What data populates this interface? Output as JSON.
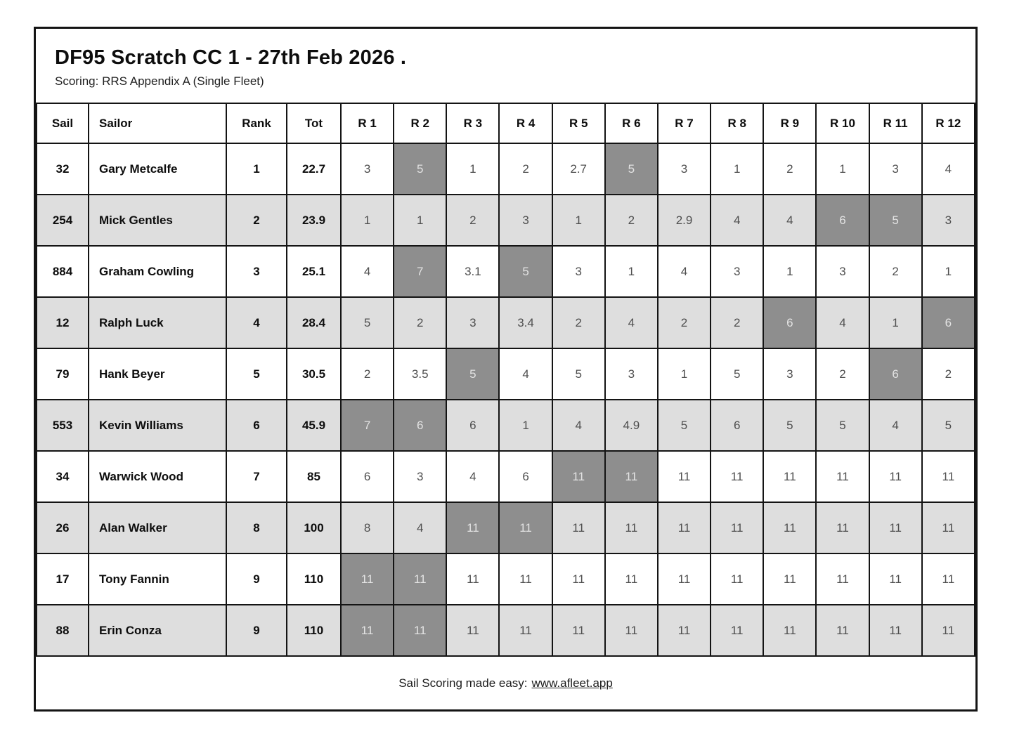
{
  "report": {
    "title": "DF95 Scratch CC 1 - 27th Feb 2026 .",
    "subtitle": "Scoring: RRS Appendix A (Single Fleet)"
  },
  "table": {
    "columns": [
      "Sail",
      "Sailor",
      "Rank",
      "Tot",
      "R 1",
      "R 2",
      "R 3",
      "R 4",
      "R 5",
      "R 6",
      "R 7",
      "R 8",
      "R 9",
      "R 10",
      "R 11",
      "R 12"
    ],
    "rows": [
      {
        "sail": "32",
        "sailor": "Gary Metcalfe",
        "rank": "1",
        "tot": "22.7",
        "races": [
          "3",
          "5",
          "1",
          "2",
          "2.7",
          "5",
          "3",
          "1",
          "2",
          "1",
          "3",
          "4"
        ],
        "discards": [
          1,
          5
        ]
      },
      {
        "sail": "254",
        "sailor": "Mick Gentles",
        "rank": "2",
        "tot": "23.9",
        "races": [
          "1",
          "1",
          "2",
          "3",
          "1",
          "2",
          "2.9",
          "4",
          "4",
          "6",
          "5",
          "3"
        ],
        "discards": [
          9,
          10
        ]
      },
      {
        "sail": "884",
        "sailor": "Graham Cowling",
        "rank": "3",
        "tot": "25.1",
        "races": [
          "4",
          "7",
          "3.1",
          "5",
          "3",
          "1",
          "4",
          "3",
          "1",
          "3",
          "2",
          "1"
        ],
        "discards": [
          1,
          3
        ]
      },
      {
        "sail": "12",
        "sailor": "Ralph Luck",
        "rank": "4",
        "tot": "28.4",
        "races": [
          "5",
          "2",
          "3",
          "3.4",
          "2",
          "4",
          "2",
          "2",
          "6",
          "4",
          "1",
          "6"
        ],
        "discards": [
          8,
          11
        ]
      },
      {
        "sail": "79",
        "sailor": "Hank Beyer",
        "rank": "5",
        "tot": "30.5",
        "races": [
          "2",
          "3.5",
          "5",
          "4",
          "5",
          "3",
          "1",
          "5",
          "3",
          "2",
          "6",
          "2"
        ],
        "discards": [
          2,
          10
        ]
      },
      {
        "sail": "553",
        "sailor": "Kevin Williams",
        "rank": "6",
        "tot": "45.9",
        "races": [
          "7",
          "6",
          "6",
          "1",
          "4",
          "4.9",
          "5",
          "6",
          "5",
          "5",
          "4",
          "5"
        ],
        "discards": [
          0,
          1
        ]
      },
      {
        "sail": "34",
        "sailor": "Warwick Wood",
        "rank": "7",
        "tot": "85",
        "races": [
          "6",
          "3",
          "4",
          "6",
          "11",
          "11",
          "11",
          "11",
          "11",
          "11",
          "11",
          "11"
        ],
        "discards": [
          4,
          5
        ]
      },
      {
        "sail": "26",
        "sailor": "Alan Walker",
        "rank": "8",
        "tot": "100",
        "races": [
          "8",
          "4",
          "11",
          "11",
          "11",
          "11",
          "11",
          "11",
          "11",
          "11",
          "11",
          "11"
        ],
        "discards": [
          2,
          3
        ]
      },
      {
        "sail": "17",
        "sailor": "Tony Fannin",
        "rank": "9",
        "tot": "110",
        "races": [
          "11",
          "11",
          "11",
          "11",
          "11",
          "11",
          "11",
          "11",
          "11",
          "11",
          "11",
          "11"
        ],
        "discards": [
          0,
          1
        ]
      },
      {
        "sail": "88",
        "sailor": "Erin Conza",
        "rank": "9",
        "tot": "110",
        "races": [
          "11",
          "11",
          "11",
          "11",
          "11",
          "11",
          "11",
          "11",
          "11",
          "11",
          "11",
          "11"
        ],
        "discards": [
          0,
          1
        ]
      }
    ]
  },
  "footer": {
    "label": "Sail Scoring made easy:",
    "link_text": "www.afleet.app"
  },
  "colors": {
    "row_alt_bg": "#dedede",
    "discard_bg": "#8e8e8e",
    "discard_text": "#e3e3e3",
    "border": "#141414",
    "score_text": "#4f4f4f"
  }
}
